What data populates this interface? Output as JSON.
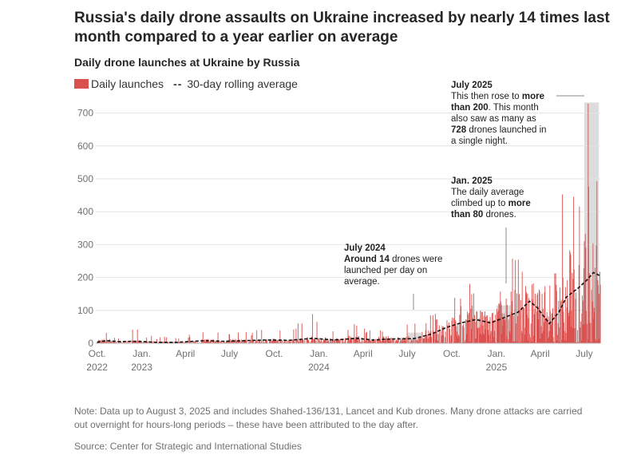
{
  "headline": "Russia's daily drone assaults on Ukraine increased by nearly 14 times last month compared to a year earlier on average",
  "subtitle": "Daily drone launches at Ukraine by Russia",
  "legend": {
    "launches": "Daily launches",
    "rolling_dash": "--",
    "rolling": "30-day rolling average"
  },
  "annotations": {
    "jul2024": {
      "head": "July 2024",
      "pre": "",
      "bold": "Around 14",
      "post": " drones were launched per day on average."
    },
    "jan2025": {
      "head": "Jan. 2025",
      "pre": "The daily average climbed up to ",
      "bold": "more than 80",
      "post": " drones."
    },
    "jul2025": {
      "head": "July 2025",
      "pre": "This then rose to ",
      "bold": "more than 200",
      "mid": ". This month also saw as many as ",
      "bold2": "728",
      "post": " drones launched in a single night."
    }
  },
  "note": "Note: Data up to August 3, 2025 and includes Shahed-136/131, Lancet and Kub drones. Many drone attacks are carried out overnight for hours-long periods – these have been attributed to the day after.",
  "source": "Source: Center for Strategic and International Studies",
  "colors": {
    "bar": "#d9504e",
    "avg": "#111111",
    "highlight": "#dcdcdc",
    "grid": "#e4e4e4",
    "axis_text": "#707070"
  },
  "chart_data": {
    "type": "bar",
    "title": "Daily drone launches at Ukraine by Russia",
    "xlabel": "",
    "ylabel": "",
    "ylim": [
      0,
      750
    ],
    "yticks": [
      0,
      100,
      200,
      300,
      400,
      500,
      600,
      700
    ],
    "x_range": [
      "2022-09-25",
      "2025-08-03"
    ],
    "xticks": [
      {
        "month": "Oct.",
        "year": "2022",
        "date": "2022-10-01"
      },
      {
        "month": "Jan.",
        "year": "2023",
        "date": "2023-01-01"
      },
      {
        "month": "April",
        "year": "",
        "date": "2023-04-01"
      },
      {
        "month": "July",
        "year": "",
        "date": "2023-07-01"
      },
      {
        "month": "Oct.",
        "year": "",
        "date": "2023-10-01"
      },
      {
        "month": "Jan.",
        "year": "2024",
        "date": "2024-01-01"
      },
      {
        "month": "April",
        "year": "",
        "date": "2024-04-01"
      },
      {
        "month": "July",
        "year": "",
        "date": "2024-07-01"
      },
      {
        "month": "Oct.",
        "year": "",
        "date": "2024-10-01"
      },
      {
        "month": "Jan.",
        "year": "2025",
        "date": "2025-01-01"
      },
      {
        "month": "April",
        "year": "",
        "date": "2025-04-01"
      },
      {
        "month": "July",
        "year": "",
        "date": "2025-07-01"
      }
    ],
    "series": [
      {
        "name": "Daily launches",
        "style": "bars",
        "note": "Approximate daily series; monthly mean and peak (max) values read from the chart",
        "monthly": [
          {
            "month": "2022-10",
            "mean": 8,
            "max": 38
          },
          {
            "month": "2022-11",
            "mean": 4,
            "max": 22
          },
          {
            "month": "2022-12",
            "mean": 6,
            "max": 42
          },
          {
            "month": "2023-01",
            "mean": 4,
            "max": 30
          },
          {
            "month": "2023-02",
            "mean": 3,
            "max": 20
          },
          {
            "month": "2023-03",
            "mean": 3,
            "max": 18
          },
          {
            "month": "2023-04",
            "mean": 4,
            "max": 28
          },
          {
            "month": "2023-05",
            "mean": 8,
            "max": 50
          },
          {
            "month": "2023-06",
            "mean": 6,
            "max": 40
          },
          {
            "month": "2023-07",
            "mean": 8,
            "max": 45
          },
          {
            "month": "2023-08",
            "mean": 7,
            "max": 40
          },
          {
            "month": "2023-09",
            "mean": 9,
            "max": 50
          },
          {
            "month": "2023-10",
            "mean": 8,
            "max": 45
          },
          {
            "month": "2023-11",
            "mean": 10,
            "max": 70
          },
          {
            "month": "2023-12",
            "mean": 13,
            "max": 100
          },
          {
            "month": "2024-01",
            "mean": 11,
            "max": 60
          },
          {
            "month": "2024-02",
            "mean": 10,
            "max": 50
          },
          {
            "month": "2024-03",
            "mean": 14,
            "max": 60
          },
          {
            "month": "2024-04",
            "mean": 10,
            "max": 45
          },
          {
            "month": "2024-05",
            "mean": 13,
            "max": 50
          },
          {
            "month": "2024-06",
            "mean": 12,
            "max": 50
          },
          {
            "month": "2024-07",
            "mean": 14,
            "max": 60
          },
          {
            "month": "2024-08",
            "mean": 25,
            "max": 90
          },
          {
            "month": "2024-09",
            "mean": 45,
            "max": 130
          },
          {
            "month": "2024-10",
            "mean": 60,
            "max": 140
          },
          {
            "month": "2024-11",
            "mean": 70,
            "max": 190
          },
          {
            "month": "2024-12",
            "mean": 60,
            "max": 175
          },
          {
            "month": "2025-01",
            "mean": 80,
            "max": 170
          },
          {
            "month": "2025-02",
            "mean": 100,
            "max": 270
          },
          {
            "month": "2025-03",
            "mean": 115,
            "max": 220
          },
          {
            "month": "2025-04",
            "mean": 70,
            "max": 180
          },
          {
            "month": "2025-05",
            "mean": 140,
            "max": 470
          },
          {
            "month": "2025-06",
            "mean": 175,
            "max": 500
          },
          {
            "month": "2025-07",
            "mean": 210,
            "max": 728
          },
          {
            "month": "2025-08",
            "mean": 150,
            "max": 300
          }
        ]
      },
      {
        "name": "30-day rolling average",
        "style": "dashed-line",
        "points": [
          {
            "date": "2022-10-01",
            "value": 3
          },
          {
            "date": "2022-10-20",
            "value": 8
          },
          {
            "date": "2022-11-15",
            "value": 5
          },
          {
            "date": "2022-12-20",
            "value": 6
          },
          {
            "date": "2023-02-01",
            "value": 3
          },
          {
            "date": "2023-03-15",
            "value": 3
          },
          {
            "date": "2023-05-10",
            "value": 8
          },
          {
            "date": "2023-06-20",
            "value": 6
          },
          {
            "date": "2023-08-01",
            "value": 8
          },
          {
            "date": "2023-09-20",
            "value": 10
          },
          {
            "date": "2023-11-01",
            "value": 9
          },
          {
            "date": "2023-12-20",
            "value": 15
          },
          {
            "date": "2024-02-01",
            "value": 10
          },
          {
            "date": "2024-03-20",
            "value": 15
          },
          {
            "date": "2024-04-20",
            "value": 10
          },
          {
            "date": "2024-06-01",
            "value": 13
          },
          {
            "date": "2024-07-15",
            "value": 14
          },
          {
            "date": "2024-08-20",
            "value": 28
          },
          {
            "date": "2024-09-20",
            "value": 48
          },
          {
            "date": "2024-10-20",
            "value": 62
          },
          {
            "date": "2024-11-20",
            "value": 72
          },
          {
            "date": "2024-12-20",
            "value": 62
          },
          {
            "date": "2025-01-20",
            "value": 80
          },
          {
            "date": "2025-02-15",
            "value": 95
          },
          {
            "date": "2025-03-10",
            "value": 128
          },
          {
            "date": "2025-03-25",
            "value": 110
          },
          {
            "date": "2025-04-20",
            "value": 60
          },
          {
            "date": "2025-05-10",
            "value": 95
          },
          {
            "date": "2025-05-25",
            "value": 140
          },
          {
            "date": "2025-06-20",
            "value": 170
          },
          {
            "date": "2025-07-05",
            "value": 190
          },
          {
            "date": "2025-07-20",
            "value": 215
          },
          {
            "date": "2025-08-03",
            "value": 205
          }
        ]
      }
    ],
    "highlights": [
      {
        "label": "July 2024",
        "start": "2024-07-01",
        "end": "2024-07-31",
        "average": 14
      },
      {
        "label": "Jan. 2025",
        "start": "2025-01-01",
        "end": "2025-01-31",
        "average": 80
      },
      {
        "label": "July 2025",
        "start": "2025-07-01",
        "end": "2025-07-31",
        "average": 200,
        "peak": 728
      }
    ]
  }
}
